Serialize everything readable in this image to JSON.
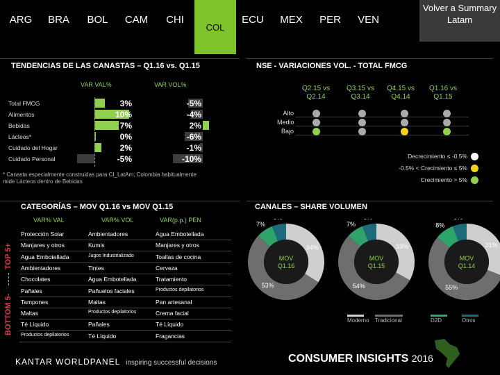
{
  "nav": {
    "tabs": [
      "ARG",
      "BRA",
      "BOL",
      "CAM",
      "CHI",
      "COL",
      "ECU",
      "MEX",
      "PER",
      "VEN"
    ],
    "active": "COL",
    "back_label": "Volver a Summary Latam"
  },
  "baskets": {
    "title": "TENDENCIAS DE LAS CANASTAS – Q1.16 vs. Q1.15",
    "col_val": "VAR VAL%",
    "col_vol": "VAR VOL%",
    "rows": [
      {
        "label": "Total FMCG",
        "val": "3%",
        "vol": "-5%"
      },
      {
        "label": "Alimentos",
        "val": "10%",
        "vol": "-4%"
      },
      {
        "label": "Bebidas",
        "val": "7%",
        "vol": "2%"
      },
      {
        "label": "Lácteos*",
        "val": "0%",
        "vol": "-6%"
      },
      {
        "label": "Cuidado del Hogar",
        "val": "2%",
        "vol": "-1%"
      },
      {
        "label": "Cuidado Personal",
        "val": "-5%",
        "vol": "-10%"
      }
    ],
    "val_numbers": [
      3,
      10,
      7,
      0,
      2,
      -5
    ],
    "vol_numbers": [
      -5,
      -4,
      2,
      -6,
      -1,
      -10
    ],
    "footnote": "* Canasta especialmente construidas para CI_LatAm; Colombia habitualmente mide Lácteos dentro de Bebidas"
  },
  "nse": {
    "title": "NSE - VARIACIONES VOL. - TOTAL FMCG",
    "headers": [
      "Q2.15 vs Q2.14",
      "Q3.15 vs Q3.14",
      "Q4.15 vs Q4.14",
      "Q1.16 vs Q1.15"
    ],
    "rows": [
      "Alto",
      "Medio",
      "Bajo"
    ],
    "levels": [
      [
        "grey",
        "grey",
        "grey",
        "grey"
      ],
      [
        "grey",
        "grey",
        "grey",
        "grey"
      ],
      [
        "green",
        "grey",
        "yellow",
        "green"
      ]
    ],
    "legend": [
      {
        "label": "Decrecimiento ≤ -0.5%",
        "color": "#ffffff"
      },
      {
        "label": "-0.5% < Crecimiento ≤ 5%",
        "color": "#f5d31a"
      },
      {
        "label": "Crecimiento > 5%",
        "color": "#8fd14f"
      }
    ]
  },
  "categories": {
    "title": "CATEGORÍAS – MOV Q1.16 vs MOV Q1.15",
    "headers": [
      "VAR% VAL",
      "VAR% VOL",
      "VAR(p.p.) PEN"
    ],
    "top_label": "TOP 5+",
    "bottom_label": "BOTTOM 5-",
    "top": [
      [
        "Protección Solar",
        "Ambientadores",
        "Agua Embotellada"
      ],
      [
        "Manjares y otros",
        "Kumis",
        "Manjares y otros"
      ],
      [
        "Agua Embotellada",
        "Jugos Industrializado",
        "Toallas de cocina"
      ],
      [
        "Ambientadores",
        "Tintes",
        "Cerveza"
      ],
      [
        "Chocolates",
        "Agua Embotellada",
        "Tratamiento"
      ]
    ],
    "bottom": [
      [
        "Pañales",
        "Pañuelos faciales",
        "Productos depilatorios"
      ],
      [
        "Tampones",
        "Maltas",
        "Pan artesanal"
      ],
      [
        "Maltas",
        "Productos depilatorios",
        "Crema facial"
      ],
      [
        "Té Líquido",
        "Pañales",
        "Té Líquido"
      ],
      [
        "Productos depilatorios",
        "Té Líquido",
        "Fragancias"
      ]
    ]
  },
  "channels": {
    "title": "CANALES – SHARE VOLUMEN",
    "donuts": [
      {
        "label": "MOV Q1.16",
        "slices": [
          {
            "name": "Moderno",
            "value": 34
          },
          {
            "name": "Tradicional",
            "value": 53
          },
          {
            "name": "D2D",
            "value": 7
          },
          {
            "name": "Otros",
            "value": 6
          }
        ],
        "labels": [
          "34%",
          "53%",
          "7%",
          "6%"
        ]
      },
      {
        "label": "MOV Q1.15",
        "slices": [
          {
            "name": "Moderno",
            "value": 33
          },
          {
            "name": "Tradicional",
            "value": 54
          },
          {
            "name": "D2D",
            "value": 7
          },
          {
            "name": "Otros",
            "value": 6
          }
        ],
        "labels": [
          "33%",
          "54%",
          "7%",
          "6%"
        ]
      },
      {
        "label": "MOV Q1.14",
        "slices": [
          {
            "name": "Moderno",
            "value": 31
          },
          {
            "name": "Tradicional",
            "value": 55
          },
          {
            "name": "D2D",
            "value": 8
          },
          {
            "name": "Otros",
            "value": 6
          }
        ],
        "labels": [
          "31%",
          "55%",
          "8%",
          "6%"
        ]
      }
    ],
    "legend": [
      {
        "name": "Moderno",
        "color": "#cfcfcf"
      },
      {
        "name": "Tradicional",
        "color": "#6e6e6e"
      },
      {
        "name": "D2D",
        "color": "#2fa46a"
      },
      {
        "name": "Otros",
        "color": "#1d6a7a"
      }
    ]
  },
  "footer": {
    "kantar": "KANTAR WORLDPANEL",
    "tagline": "inspiring successful decisions",
    "ci": "CONSUMER INSIGHTS",
    "year": "2016"
  }
}
